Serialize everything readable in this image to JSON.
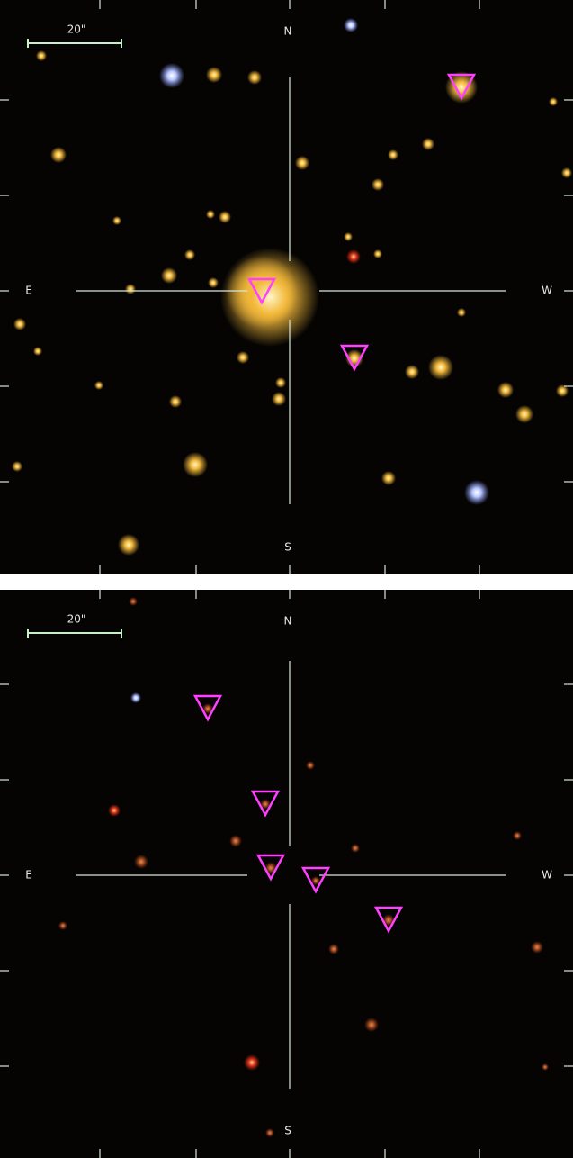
{
  "panels": [
    {
      "scale_label": "20\"",
      "north": "N",
      "south": "S",
      "east": "E",
      "west": "W"
    },
    {
      "scale_label": "20\"",
      "north": "N",
      "south": "S",
      "east": "E",
      "west": "W"
    }
  ]
}
